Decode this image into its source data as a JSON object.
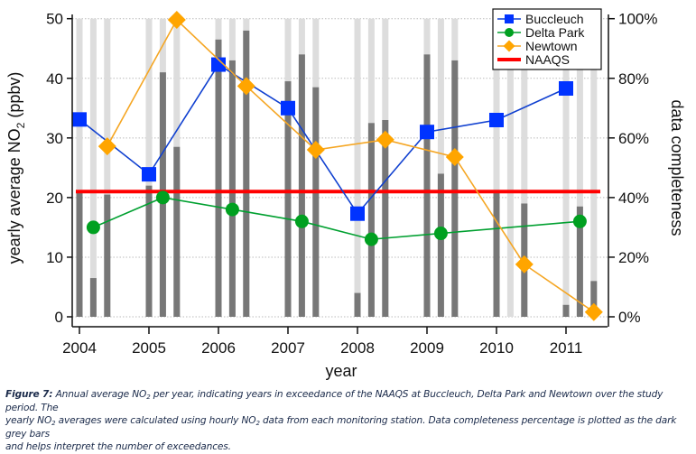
{
  "chart_data": {
    "type": "line",
    "title": "",
    "xlabel": "year",
    "ylabel": "yearly average NO2 (ppbv)",
    "ylabel_parts": {
      "pre": "yearly average NO",
      "sub": "2",
      "post": " (ppbv)"
    },
    "y2label": "data completeness",
    "xlim": [
      2004,
      2011.55
    ],
    "ylim": [
      0,
      50
    ],
    "y2lim": [
      0,
      100
    ],
    "grid": true,
    "legend_position": "top-right",
    "x_ticks": [
      2004,
      2005,
      2006,
      2007,
      2008,
      2009,
      2010,
      2011
    ],
    "y_ticks": [
      0,
      10,
      20,
      30,
      40,
      50
    ],
    "y2_ticks": [
      "0%",
      "20%",
      "40%",
      "60%",
      "80%",
      "100%"
    ],
    "y2_tick_values": [
      0,
      20,
      40,
      60,
      80,
      100
    ],
    "series": [
      {
        "name": "Buccleuch",
        "color": "#0033ff",
        "line_color": "#1040d0",
        "marker": "square",
        "x_offset": 0.0,
        "x": [
          2004,
          2005,
          2006,
          2007,
          2008,
          2009,
          2010,
          2011
        ],
        "values": [
          33.1,
          23.9,
          42.3,
          35.0,
          17.3,
          31.0,
          33.0,
          38.3
        ]
      },
      {
        "name": "Delta Park",
        "color": "#00a020",
        "line_color": "#00a030",
        "marker": "circle",
        "x_offset": 0.2,
        "x": [
          2004,
          2005,
          2006,
          2007,
          2008,
          2009,
          2011
        ],
        "values": [
          15.0,
          20.0,
          18.0,
          16.0,
          13.0,
          14.0,
          16.0
        ]
      },
      {
        "name": "Newtown",
        "color": "#ffa500",
        "line_color": "#f5a623",
        "marker": "diamond",
        "x_offset": 0.4,
        "x": [
          2004,
          2005,
          2006,
          2007,
          2008,
          2009,
          2010,
          2011
        ],
        "values": [
          28.6,
          49.8,
          38.7,
          28.0,
          29.7,
          26.8,
          8.8,
          0.8
        ]
      },
      {
        "name": "NAAQS",
        "color": "#ff0000",
        "type": "hline",
        "value": 21
      }
    ],
    "completeness_bars": {
      "axis": "right",
      "unit": "%",
      "dark_color": "#777777",
      "light_color": "#dddddd",
      "stations": [
        "Buccleuch",
        "Delta Park",
        "Newtown"
      ],
      "x_offsets": [
        0.0,
        0.2,
        0.4
      ],
      "years": [
        2004,
        2005,
        2006,
        2007,
        2008,
        2009,
        2010,
        2011
      ],
      "values": [
        [
          42,
          13,
          41
        ],
        [
          44,
          82,
          57
        ],
        [
          93,
          86,
          96
        ],
        [
          79,
          88,
          77
        ],
        [
          8,
          65,
          66
        ],
        [
          88,
          48,
          86
        ],
        [
          42,
          0,
          38
        ],
        [
          4,
          37,
          12
        ]
      ]
    }
  },
  "caption": {
    "label": "Figure 7:",
    "line1_a": " Annual average NO",
    "line1_sub": "2",
    "line1_b": " per year, indicating years in exceedance of the NAAQS at Buccleuch, Delta Park and Newtown over the study period. The",
    "line2_a": "yearly NO",
    "line2_sub1": "2",
    "line2_b": " averages were calculated using hourly NO",
    "line2_sub2": "2",
    "line2_c": " data from each monitoring station. Data completeness percentage is plotted as the dark grey bars",
    "line3": "and helps interpret the number of exceedances."
  }
}
